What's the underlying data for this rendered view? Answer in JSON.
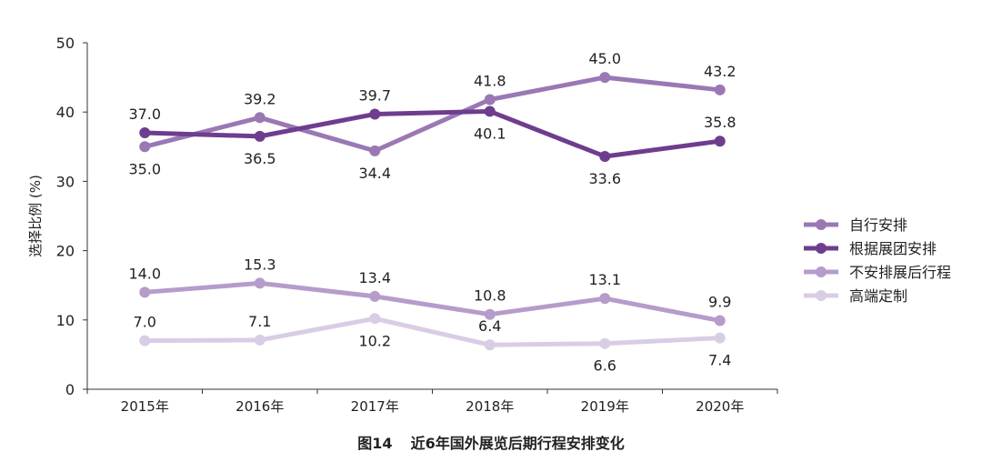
{
  "chart_data": {
    "type": "line",
    "title": "",
    "caption_number": "图14",
    "caption_text": "近6年国外展览后期行程安排变化",
    "ylabel": "选择比例 (%)",
    "xlabel": "",
    "ylim": [
      0,
      50
    ],
    "yticks": [
      0,
      10,
      20,
      30,
      40,
      50
    ],
    "categories": [
      "2015年",
      "2016年",
      "2017年",
      "2018年",
      "2019年",
      "2020年"
    ],
    "grid": false,
    "legend_placement": "right",
    "series": [
      {
        "name": "自行安排",
        "color": "#9a78b4",
        "values": [
          35.0,
          39.2,
          34.4,
          41.8,
          45.0,
          43.2
        ],
        "label_pos": [
          "below",
          "above",
          "below",
          "above",
          "above",
          "above"
        ]
      },
      {
        "name": "根据展团安排",
        "color": "#6e3d8e",
        "values": [
          37.0,
          36.5,
          39.7,
          40.1,
          33.6,
          35.8
        ],
        "label_pos": [
          "above",
          "below",
          "above",
          "below",
          "below",
          "above"
        ]
      },
      {
        "name": "不安排展后行程",
        "color": "#b59ccb",
        "values": [
          14.0,
          15.3,
          13.4,
          10.8,
          13.1,
          9.9
        ],
        "label_pos": [
          "above",
          "above",
          "above",
          "above",
          "above",
          "above"
        ]
      },
      {
        "name": "高端定制",
        "color": "#d9cde6",
        "values": [
          7.0,
          7.1,
          10.2,
          6.4,
          6.6,
          7.4
        ],
        "label_pos": [
          "above",
          "above",
          "below",
          "above",
          "below",
          "below"
        ]
      }
    ]
  }
}
